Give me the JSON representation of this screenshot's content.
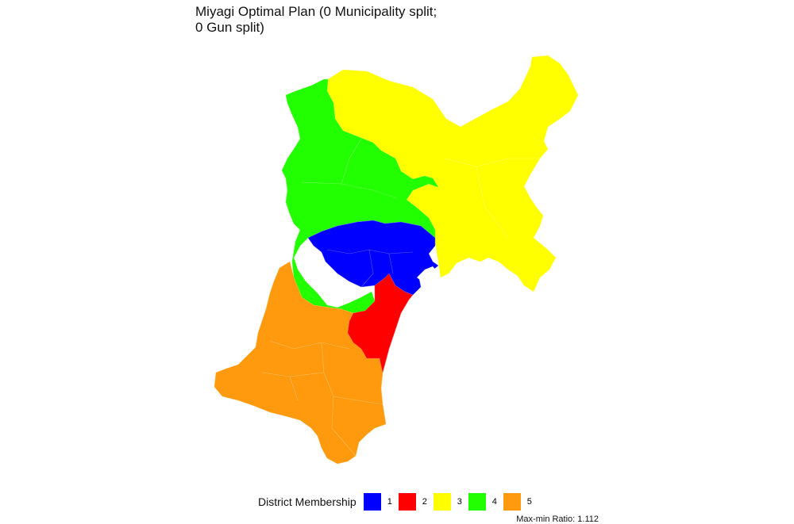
{
  "title_line1": "Miyagi Optimal Plan (0 Municipality split;",
  "title_line2": "0 Gun split)",
  "legend": {
    "title": "District Membership",
    "items": [
      {
        "label": "1",
        "color": "#0000ff"
      },
      {
        "label": "2",
        "color": "#ff0000"
      },
      {
        "label": "3",
        "color": "#ffff00"
      },
      {
        "label": "4",
        "color": "#22ff00"
      },
      {
        "label": "5",
        "color": "#ff9a0e"
      }
    ]
  },
  "caption": "Max-min Ratio: 1.112",
  "districts": [
    {
      "id": "1",
      "color": "#0000ff"
    },
    {
      "id": "2",
      "color": "#ff0000"
    },
    {
      "id": "3",
      "color": "#ffff00"
    },
    {
      "id": "4",
      "color": "#22ff00"
    },
    {
      "id": "5",
      "color": "#ff9a0e"
    }
  ]
}
